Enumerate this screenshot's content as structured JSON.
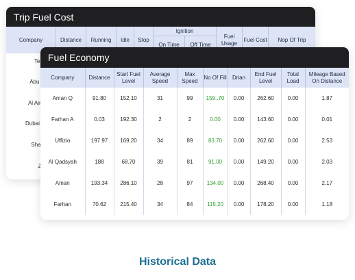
{
  "trip_card": {
    "title": "Trip Fuel Cost",
    "headers": {
      "company": "Company",
      "distance": "Distance",
      "running": "Running",
      "idle": "Idle",
      "stop": "Stop",
      "ignition": "Ignition",
      "on_time": "On Time",
      "off_time": "Off Time",
      "fuel_usage": "Fuel Usage",
      "fuel_cost": "Fuel Cost",
      "nop_of_trip": "Nop Of Trip"
    },
    "companies": [
      "Teleco",
      "Abu dha",
      "Al Ain Ve",
      "Dubai veh",
      "Sharjah",
      "Zajal"
    ]
  },
  "fuel_card": {
    "title": "Fuel Economy",
    "columns": [
      "Company",
      "Distance",
      "Start Fuel Level",
      "Average Speed",
      "Max Speed",
      "No Of Fill",
      "Drian",
      "End Fuel Level",
      "Total Load",
      "Mileage Based On Distance"
    ],
    "rows": [
      [
        "Aman Q",
        "91.80",
        "152.10",
        "31",
        "99",
        "159..70",
        "0.00",
        "262.60",
        "0.00",
        "1.87"
      ],
      [
        "Farhan A",
        "0.03",
        "192.30",
        "2",
        "2",
        "0.00",
        "0.00",
        "143.60",
        "0.00",
        "0.01"
      ],
      [
        "Uffizio",
        "197.97",
        "169.20",
        "34",
        "89",
        "83.70",
        "0.00",
        "262.60",
        "0.00",
        "2.53"
      ],
      [
        "Al Qadsyah",
        "188",
        "68.70",
        "39",
        "81",
        "91.00",
        "0.00",
        "149.20",
        "0.00",
        "2.03"
      ],
      [
        "Aman",
        "193.34",
        "286.10",
        "28",
        "97",
        "134.00",
        "0.00",
        "268.40",
        "0.00",
        "2.17"
      ],
      [
        "Farhan",
        "70.62",
        "215.40",
        "34",
        "84",
        "115.20",
        "0.00",
        "178.20",
        "0.00",
        "1.18"
      ]
    ],
    "highlight_column": 5,
    "highlight_color": "#2f9e2f"
  },
  "caption": "Historical Data",
  "colors": {
    "header_dark": "#1f1f21",
    "table_header_bg": "#dde4f6",
    "caption": "#1c6f93"
  }
}
